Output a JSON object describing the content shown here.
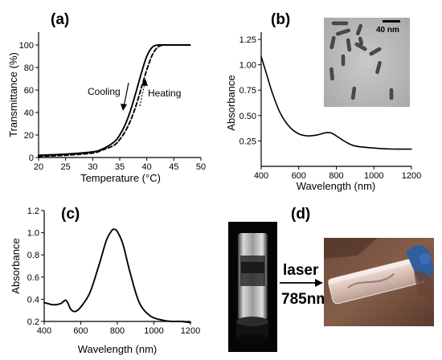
{
  "panels": {
    "a": {
      "label": "(a)"
    },
    "b": {
      "label": "(b)",
      "scale_bar_label": "40 nm"
    },
    "c": {
      "label": "(c)"
    },
    "d": {
      "label": "(d)",
      "laser_label": "laser",
      "wavelength_label": "785nm"
    }
  },
  "chart_data": [
    {
      "panel": "a",
      "type": "line",
      "xlabel": "Temperature (°C)",
      "ylabel": "Transmittance (%)",
      "xlim": [
        20,
        50
      ],
      "ylim": [
        0,
        100
      ],
      "xticks": [
        20,
        25,
        30,
        35,
        40,
        45,
        50
      ],
      "yticks": [
        0,
        20,
        40,
        60,
        80,
        100
      ],
      "annotations": [
        "Cooling",
        "Heating"
      ],
      "series": [
        {
          "name": "Cooling",
          "style": "solid",
          "x": [
            20,
            25,
            30,
            32,
            34,
            35,
            36,
            37,
            38,
            39,
            40,
            41,
            42,
            43,
            45,
            48
          ],
          "y": [
            2,
            3,
            5,
            8,
            14,
            20,
            29,
            42,
            58,
            75,
            90,
            98,
            100,
            100,
            100,
            100
          ]
        },
        {
          "name": "Heating",
          "style": "dashed",
          "x": [
            20,
            25,
            30,
            32,
            34,
            35,
            36,
            37,
            38,
            39,
            40,
            41,
            42,
            43,
            44,
            48
          ],
          "y": [
            1,
            2,
            4,
            7,
            11,
            16,
            23,
            33,
            46,
            62,
            78,
            91,
            98,
            100,
            100,
            100
          ]
        }
      ]
    },
    {
      "panel": "b",
      "type": "line",
      "xlabel": "Wavelength (nm)",
      "ylabel": "Absorbance",
      "xlim": [
        400,
        1200
      ],
      "ylim": [
        0,
        1.25
      ],
      "xticks": [
        400,
        600,
        800,
        1000,
        1200
      ],
      "yticks": [
        0.25,
        0.5,
        0.75,
        1.0,
        1.25
      ],
      "ytick_labels": [
        "0.25",
        "0.50",
        "0.75",
        "1.00",
        "1.25"
      ],
      "series": [
        {
          "name": "",
          "x": [
            400,
            430,
            460,
            500,
            550,
            600,
            650,
            700,
            740,
            770,
            800,
            850,
            900,
            1000,
            1100,
            1200
          ],
          "y": [
            1.08,
            0.9,
            0.72,
            0.53,
            0.39,
            0.32,
            0.3,
            0.31,
            0.33,
            0.33,
            0.3,
            0.24,
            0.2,
            0.18,
            0.17,
            0.17
          ]
        }
      ]
    },
    {
      "panel": "c",
      "type": "line",
      "xlabel": "Wavelength (nm)",
      "ylabel": "Absorbance",
      "xlim": [
        400,
        1200
      ],
      "ylim": [
        0.2,
        1.2
      ],
      "xticks": [
        400,
        600,
        800,
        1000,
        1200
      ],
      "yticks": [
        0.2,
        0.4,
        0.6,
        0.8,
        1.0,
        1.2
      ],
      "ytick_labels": [
        "0.2",
        "0.4",
        "0.6",
        "0.8",
        "1.0",
        "1.2"
      ],
      "series": [
        {
          "name": "",
          "x": [
            400,
            450,
            490,
            520,
            545,
            570,
            600,
            650,
            700,
            740,
            770,
            785,
            800,
            830,
            870,
            920,
            980,
            1050,
            1100,
            1150,
            1200
          ],
          "y": [
            0.37,
            0.35,
            0.36,
            0.39,
            0.31,
            0.29,
            0.33,
            0.46,
            0.71,
            0.93,
            1.02,
            1.03,
            1.01,
            0.9,
            0.64,
            0.37,
            0.25,
            0.21,
            0.2,
            0.2,
            0.19
          ]
        }
      ]
    }
  ]
}
